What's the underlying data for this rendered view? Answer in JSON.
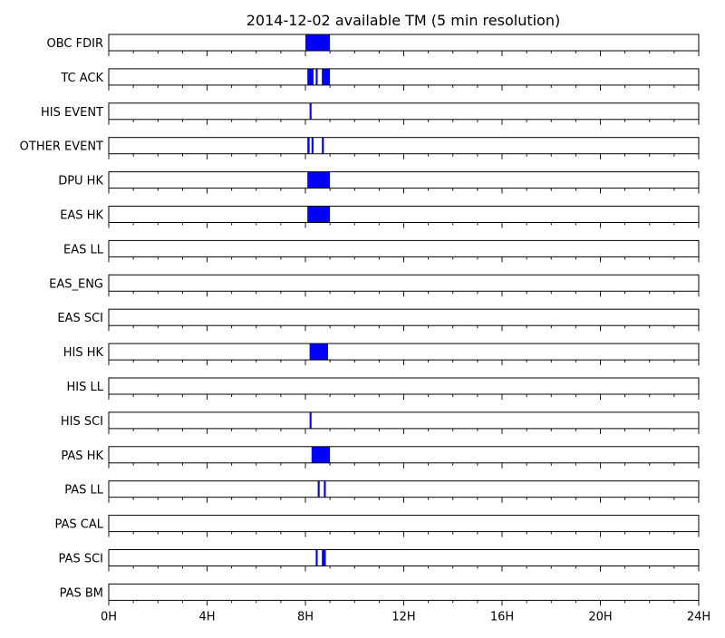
{
  "chart_data": {
    "type": "timeline",
    "title": "2014-12-02 available TM (5 min resolution)",
    "x_unit": "hours",
    "xlim": [
      0,
      24
    ],
    "x_ticks": [
      0,
      4,
      8,
      12,
      16,
      20,
      24
    ],
    "x_tick_labels": [
      "0H",
      "4H",
      "8H",
      "12H",
      "16H",
      "20H",
      "24H"
    ],
    "minor_tick_step_hours": 1,
    "bar_color": "#0000ff",
    "rows": [
      {
        "name": "OBC FDIR",
        "intervals": [
          [
            8.0,
            9.0
          ]
        ]
      },
      {
        "name": "TC ACK",
        "intervals": [
          [
            8.08,
            8.33
          ],
          [
            8.42,
            8.5
          ],
          [
            8.67,
            8.83
          ],
          [
            8.83,
            9.0
          ]
        ]
      },
      {
        "name": "HIS EVENT",
        "intervals": [
          [
            8.17,
            8.25
          ]
        ]
      },
      {
        "name": "OTHER EVENT",
        "intervals": [
          [
            8.08,
            8.17
          ],
          [
            8.25,
            8.33
          ],
          [
            8.67,
            8.75
          ]
        ]
      },
      {
        "name": "DPU HK",
        "intervals": [
          [
            8.08,
            9.0
          ]
        ]
      },
      {
        "name": "EAS HK",
        "intervals": [
          [
            8.08,
            9.0
          ]
        ]
      },
      {
        "name": "EAS LL",
        "intervals": []
      },
      {
        "name": "EAS_ENG",
        "intervals": []
      },
      {
        "name": "EAS SCI",
        "intervals": []
      },
      {
        "name": "HIS HK",
        "intervals": [
          [
            8.17,
            8.92
          ]
        ]
      },
      {
        "name": "HIS LL",
        "intervals": []
      },
      {
        "name": "HIS SCI",
        "intervals": [
          [
            8.17,
            8.25
          ]
        ]
      },
      {
        "name": "PAS HK",
        "intervals": [
          [
            8.25,
            9.0
          ]
        ]
      },
      {
        "name": "PAS LL",
        "intervals": [
          [
            8.5,
            8.58
          ],
          [
            8.75,
            8.83
          ]
        ]
      },
      {
        "name": "PAS CAL",
        "intervals": []
      },
      {
        "name": "PAS SCI",
        "intervals": [
          [
            8.42,
            8.5
          ],
          [
            8.67,
            8.83
          ]
        ]
      },
      {
        "name": "PAS BM",
        "intervals": []
      }
    ]
  }
}
